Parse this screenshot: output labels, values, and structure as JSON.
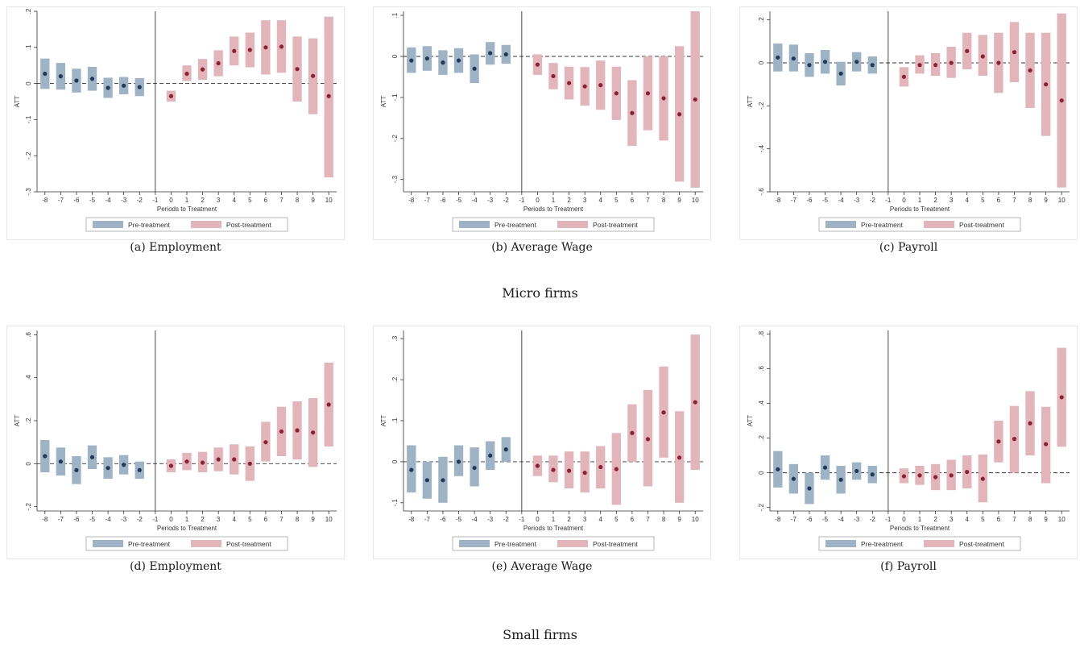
{
  "colors": {
    "pre": "#9fb3c6",
    "post": "#e3b4ba",
    "pre_point": "#1f3b58",
    "post_point": "#8a2232",
    "frame": "#e4e8ec"
  },
  "groups": [
    {
      "label": "Micro firms"
    },
    {
      "label": "Small firms"
    }
  ],
  "chart_data": [
    {
      "type": "bar",
      "caption": "(a) Employment",
      "ylabel": "ATT",
      "xlabel": "Periods to Treatment",
      "ylim": [
        -0.3,
        0.2
      ],
      "yticks": [
        -0.3,
        -0.2,
        -0.1,
        0,
        0.1,
        0.2
      ],
      "ytick_labels": [
        "-.3",
        "-.2",
        "-.1",
        "0",
        ".1",
        ".2"
      ],
      "x": [
        -8,
        -7,
        -6,
        -5,
        -4,
        -3,
        -2,
        -1,
        0,
        1,
        2,
        3,
        4,
        5,
        6,
        7,
        8,
        9,
        10
      ],
      "legend": [
        "Pre-treatment",
        "Post-treatment"
      ],
      "series": [
        {
          "name": "Pre-treatment",
          "x": [
            -8,
            -7,
            -6,
            -5,
            -4,
            -3,
            -2
          ],
          "estimate": [
            0.027,
            0.02,
            0.008,
            0.013,
            -0.012,
            -0.006,
            -0.01
          ],
          "lower": [
            -0.015,
            -0.017,
            -0.025,
            -0.02,
            -0.04,
            -0.03,
            -0.035
          ],
          "upper": [
            0.069,
            0.057,
            0.041,
            0.046,
            0.016,
            0.018,
            0.015
          ]
        },
        {
          "name": "Post-treatment",
          "x": [
            0,
            1,
            2,
            3,
            4,
            5,
            6,
            7,
            8,
            9,
            10
          ],
          "estimate": [
            -0.035,
            0.027,
            0.039,
            0.056,
            0.09,
            0.093,
            0.1,
            0.102,
            0.04,
            0.021,
            -0.035
          ],
          "lower": [
            -0.05,
            0.007,
            0.01,
            0.02,
            0.05,
            0.045,
            0.025,
            0.03,
            -0.05,
            -0.085,
            -0.26
          ],
          "upper": [
            -0.02,
            0.05,
            0.068,
            0.092,
            0.13,
            0.141,
            0.175,
            0.175,
            0.13,
            0.125,
            0.185
          ]
        }
      ]
    },
    {
      "type": "bar",
      "caption": "(b) Average Wage",
      "ylabel": "ATT",
      "xlabel": "Periods to Treatment",
      "ylim": [
        -0.33,
        0.11
      ],
      "yticks": [
        -0.3,
        -0.2,
        -0.1,
        0,
        0.1
      ],
      "ytick_labels": [
        "-.3",
        "-.2",
        "-.1",
        "0",
        ".1"
      ],
      "x": [
        -8,
        -7,
        -6,
        -5,
        -4,
        -3,
        -2,
        -1,
        0,
        1,
        2,
        3,
        4,
        5,
        6,
        7,
        8,
        9,
        10
      ],
      "legend": [
        "Pre-treatment",
        "Post-treatment"
      ],
      "series": [
        {
          "name": "Pre-treatment",
          "x": [
            -8,
            -7,
            -6,
            -5,
            -4,
            -3,
            -2
          ],
          "estimate": [
            -0.01,
            -0.005,
            -0.015,
            -0.01,
            -0.03,
            0.008,
            0.005
          ],
          "lower": [
            -0.04,
            -0.035,
            -0.045,
            -0.04,
            -0.065,
            -0.02,
            -0.018
          ],
          "upper": [
            0.022,
            0.025,
            0.015,
            0.02,
            0.005,
            0.035,
            0.028
          ]
        },
        {
          "name": "Post-treatment",
          "x": [
            0,
            1,
            2,
            3,
            4,
            5,
            6,
            7,
            8,
            9,
            10
          ],
          "estimate": [
            -0.02,
            -0.048,
            -0.065,
            -0.073,
            -0.07,
            -0.09,
            -0.138,
            -0.09,
            -0.102,
            -0.141,
            -0.105
          ],
          "lower": [
            -0.045,
            -0.08,
            -0.105,
            -0.12,
            -0.13,
            -0.155,
            -0.218,
            -0.18,
            -0.205,
            -0.305,
            -0.32
          ],
          "upper": [
            0.005,
            -0.016,
            -0.025,
            -0.026,
            -0.01,
            -0.025,
            -0.058,
            0.0,
            0.0,
            0.025,
            0.11
          ]
        }
      ]
    },
    {
      "type": "bar",
      "caption": "(c) Payroll",
      "ylabel": "ATT",
      "xlabel": "Periods to Treatment",
      "ylim": [
        -0.6,
        0.24
      ],
      "yticks": [
        -0.6,
        -0.4,
        -0.2,
        0,
        0.2
      ],
      "ytick_labels": [
        "-.6",
        "-.4",
        "-.2",
        "0",
        ".2"
      ],
      "x": [
        -8,
        -7,
        -6,
        -5,
        -4,
        -3,
        -2,
        -1,
        0,
        1,
        2,
        3,
        4,
        5,
        6,
        7,
        8,
        9,
        10
      ],
      "legend": [
        "Pre-treatment",
        "Post-treatment"
      ],
      "series": [
        {
          "name": "Pre-treatment",
          "x": [
            -8,
            -7,
            -6,
            -5,
            -4,
            -3,
            -2
          ],
          "estimate": [
            0.025,
            0.02,
            -0.01,
            0.005,
            -0.05,
            0.005,
            -0.01
          ],
          "lower": [
            -0.04,
            -0.04,
            -0.065,
            -0.05,
            -0.105,
            -0.04,
            -0.05
          ],
          "upper": [
            0.09,
            0.085,
            0.045,
            0.06,
            0.005,
            0.05,
            0.03
          ]
        },
        {
          "name": "Post-treatment",
          "x": [
            0,
            1,
            2,
            3,
            4,
            5,
            6,
            7,
            8,
            9,
            10
          ],
          "estimate": [
            -0.065,
            -0.01,
            -0.01,
            0.0,
            0.055,
            0.03,
            0.0,
            0.05,
            -0.035,
            -0.1,
            -0.175
          ],
          "lower": [
            -0.11,
            -0.05,
            -0.06,
            -0.07,
            -0.03,
            -0.06,
            -0.14,
            -0.09,
            -0.21,
            -0.34,
            -0.58
          ],
          "upper": [
            -0.02,
            0.035,
            0.045,
            0.075,
            0.14,
            0.13,
            0.14,
            0.19,
            0.14,
            0.14,
            0.23
          ]
        }
      ]
    },
    {
      "type": "bar",
      "caption": "(d) Employment",
      "ylabel": "ATT",
      "xlabel": "Periods to Treatment",
      "ylim": [
        -0.22,
        0.62
      ],
      "yticks": [
        -0.2,
        0,
        0.2,
        0.4,
        0.6
      ],
      "ytick_labels": [
        "-.2",
        "0",
        ".2",
        ".4",
        ".6"
      ],
      "x": [
        -8,
        -7,
        -6,
        -5,
        -4,
        -3,
        -2,
        -1,
        0,
        1,
        2,
        3,
        4,
        5,
        6,
        7,
        8,
        9,
        10
      ],
      "legend": [
        "Pre-treatment",
        "Post-treatment"
      ],
      "series": [
        {
          "name": "Pre-treatment",
          "x": [
            -8,
            -7,
            -6,
            -5,
            -4,
            -3,
            -2
          ],
          "estimate": [
            0.035,
            0.01,
            -0.03,
            0.03,
            -0.02,
            -0.005,
            -0.03
          ],
          "lower": [
            -0.04,
            -0.055,
            -0.095,
            -0.025,
            -0.07,
            -0.05,
            -0.07
          ],
          "upper": [
            0.11,
            0.075,
            0.035,
            0.085,
            0.03,
            0.04,
            0.01
          ]
        },
        {
          "name": "Post-treatment",
          "x": [
            0,
            1,
            2,
            3,
            4,
            5,
            6,
            7,
            8,
            9,
            10
          ],
          "estimate": [
            -0.01,
            0.01,
            0.005,
            0.02,
            0.02,
            0.0,
            0.1,
            0.15,
            0.155,
            0.145,
            0.275
          ],
          "lower": [
            -0.04,
            -0.03,
            -0.04,
            -0.035,
            -0.05,
            -0.08,
            0.01,
            0.035,
            0.02,
            -0.015,
            0.08
          ],
          "upper": [
            0.02,
            0.05,
            0.055,
            0.075,
            0.09,
            0.08,
            0.195,
            0.265,
            0.29,
            0.305,
            0.47
          ]
        }
      ]
    },
    {
      "type": "bar",
      "caption": "(e) Average Wage",
      "ylabel": "ATT",
      "xlabel": "Periods to Treatment",
      "ylim": [
        -0.12,
        0.32
      ],
      "yticks": [
        -0.1,
        0,
        0.1,
        0.2,
        0.3
      ],
      "ytick_labels": [
        "-.1",
        "0",
        ".1",
        ".2",
        ".3"
      ],
      "x": [
        -8,
        -7,
        -6,
        -5,
        -4,
        -3,
        -2,
        -1,
        0,
        1,
        2,
        3,
        4,
        5,
        6,
        7,
        8,
        9,
        10
      ],
      "legend": [
        "Pre-treatment",
        "Post-treatment"
      ],
      "series": [
        {
          "name": "Pre-treatment",
          "x": [
            -8,
            -7,
            -6,
            -5,
            -4,
            -3,
            -2
          ],
          "estimate": [
            -0.02,
            -0.045,
            -0.045,
            0.0,
            -0.015,
            0.015,
            0.03
          ],
          "lower": [
            -0.075,
            -0.09,
            -0.1,
            -0.035,
            -0.06,
            -0.02,
            0.0
          ],
          "upper": [
            0.04,
            0.0,
            0.012,
            0.04,
            0.035,
            0.05,
            0.06
          ]
        },
        {
          "name": "Post-treatment",
          "x": [
            0,
            1,
            2,
            3,
            4,
            5,
            6,
            7,
            8,
            9,
            10
          ],
          "estimate": [
            -0.01,
            -0.02,
            -0.022,
            -0.027,
            -0.013,
            -0.018,
            0.07,
            0.055,
            0.12,
            0.01,
            0.145
          ],
          "lower": [
            -0.035,
            -0.05,
            -0.065,
            -0.075,
            -0.065,
            -0.105,
            0.0,
            -0.06,
            0.01,
            -0.1,
            -0.02
          ],
          "upper": [
            0.015,
            0.015,
            0.025,
            0.025,
            0.038,
            0.07,
            0.14,
            0.175,
            0.232,
            0.123,
            0.31
          ]
        }
      ]
    },
    {
      "type": "bar",
      "caption": "(f) Payroll",
      "ylabel": "ATT",
      "xlabel": "Periods to Treatment",
      "ylim": [
        -0.22,
        0.82
      ],
      "yticks": [
        -0.2,
        0,
        0.2,
        0.4,
        0.6,
        0.8
      ],
      "ytick_labels": [
        "-.2",
        "0",
        ".2",
        ".4",
        ".6",
        ".8"
      ],
      "x": [
        -8,
        -7,
        -6,
        -5,
        -4,
        -3,
        -2,
        -1,
        0,
        1,
        2,
        3,
        4,
        5,
        6,
        7,
        8,
        9,
        10
      ],
      "legend": [
        "Pre-treatment",
        "Post-treatment"
      ],
      "series": [
        {
          "name": "Pre-treatment",
          "x": [
            -8,
            -7,
            -6,
            -5,
            -4,
            -3,
            -2
          ],
          "estimate": [
            0.02,
            -0.035,
            -0.09,
            0.03,
            -0.04,
            0.01,
            -0.01
          ],
          "lower": [
            -0.085,
            -0.12,
            -0.18,
            -0.04,
            -0.12,
            -0.04,
            -0.06
          ],
          "upper": [
            0.125,
            0.05,
            0.0,
            0.1,
            0.04,
            0.06,
            0.04
          ]
        },
        {
          "name": "Post-treatment",
          "x": [
            0,
            1,
            2,
            3,
            4,
            5,
            6,
            7,
            8,
            9,
            10
          ],
          "estimate": [
            -0.02,
            -0.015,
            -0.025,
            -0.015,
            0.005,
            -0.035,
            0.18,
            0.195,
            0.285,
            0.165,
            0.435
          ],
          "lower": [
            -0.06,
            -0.07,
            -0.1,
            -0.1,
            -0.09,
            -0.17,
            0.06,
            0.0,
            0.1,
            -0.06,
            0.15
          ],
          "upper": [
            0.025,
            0.04,
            0.05,
            0.075,
            0.1,
            0.105,
            0.3,
            0.385,
            0.47,
            0.38,
            0.72
          ]
        }
      ]
    }
  ]
}
